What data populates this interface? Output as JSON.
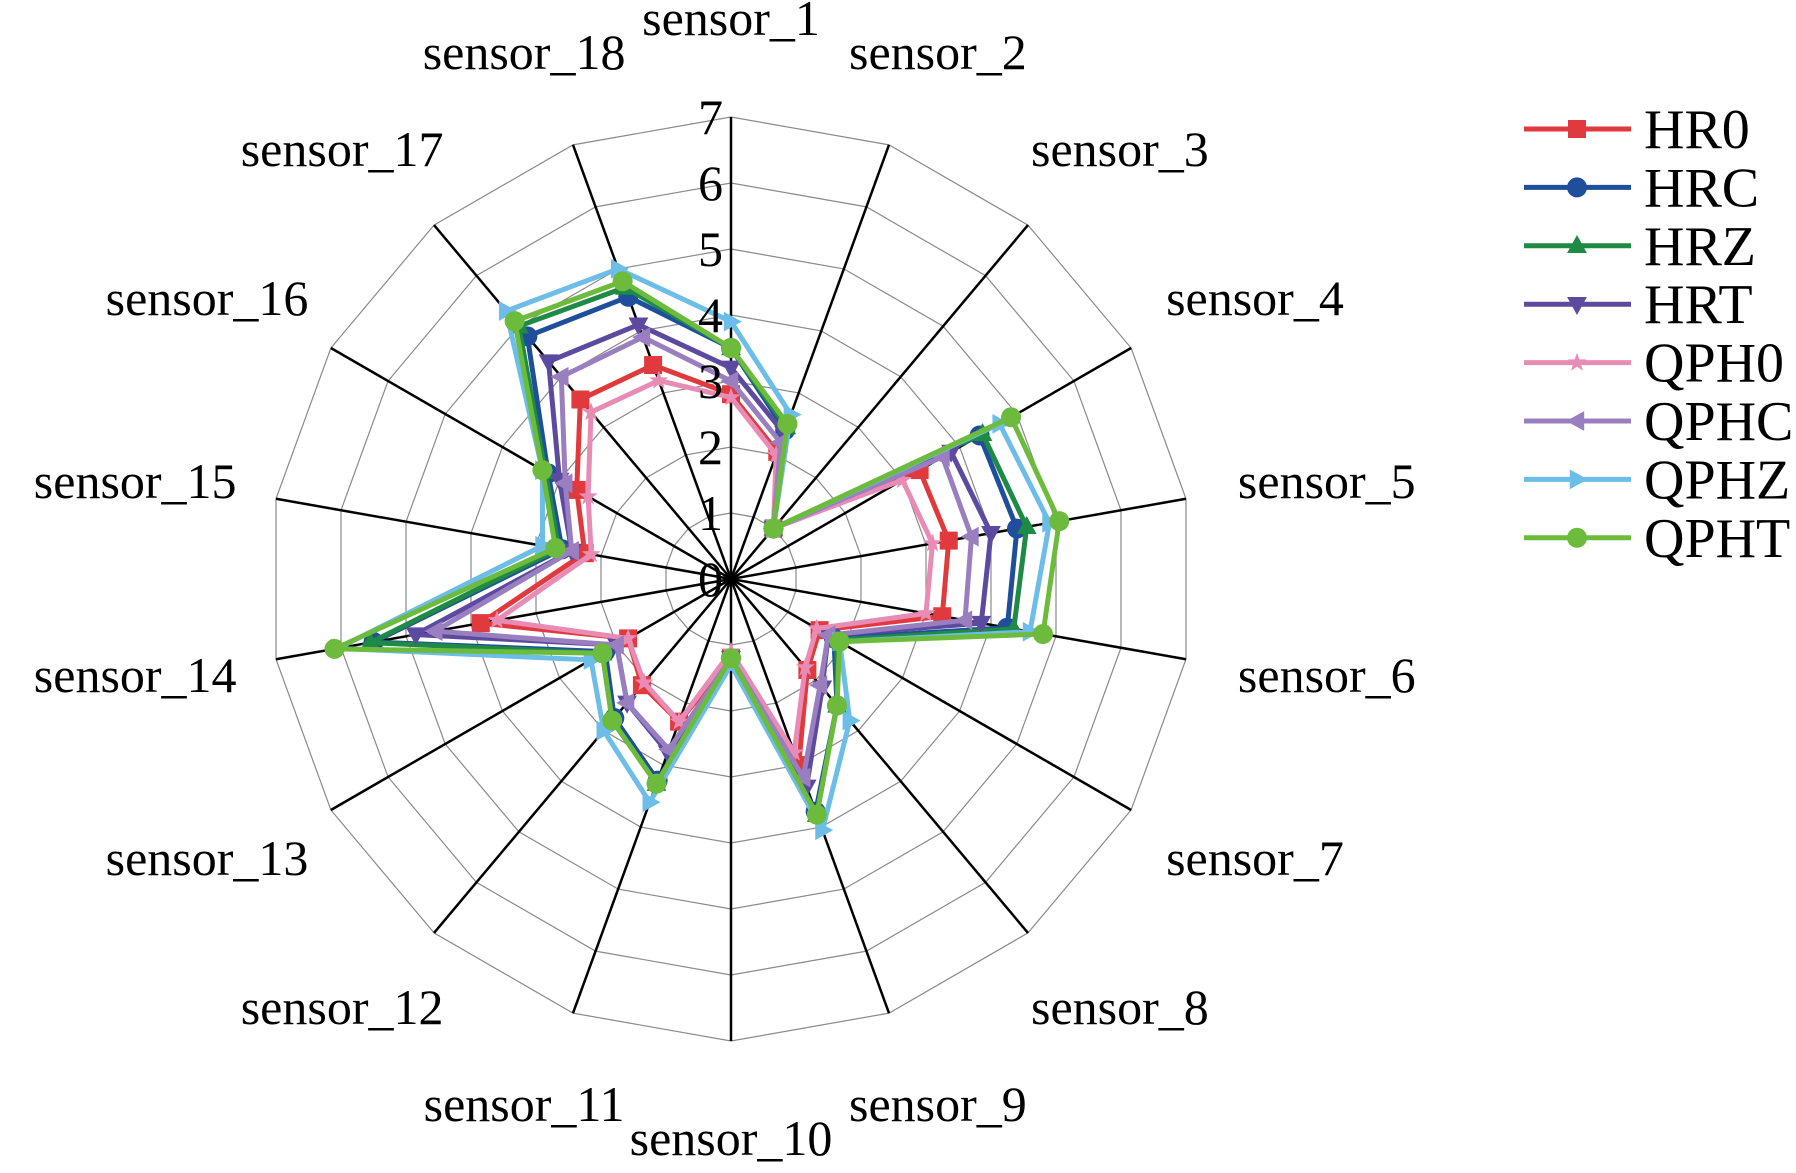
{
  "chart_data": {
    "type": "radar",
    "title": "",
    "categories": [
      "sensor_1",
      "sensor_2",
      "sensor_3",
      "sensor_4",
      "sensor_5",
      "sensor_6",
      "sensor_7",
      "sensor_8",
      "sensor_9",
      "sensor_10",
      "sensor_11",
      "sensor_12",
      "sensor_13",
      "sensor_14",
      "sensor_15",
      "sensor_16",
      "sensor_17",
      "sensor_18"
    ],
    "rlim": [
      0,
      7
    ],
    "ticks": [
      "0",
      "1",
      "2",
      "3",
      "4",
      "5",
      "6",
      "7"
    ],
    "grid": true,
    "legend_position": "top-right",
    "series": [
      {
        "name": "HR0",
        "color": "#e03a3e",
        "marker": "square",
        "values": [
          2.8,
          2.05,
          1.0,
          3.3,
          3.35,
          3.25,
          1.55,
          1.8,
          3.0,
          1.2,
          2.3,
          2.1,
          1.8,
          3.85,
          2.25,
          2.7,
          3.55,
          3.45
        ]
      },
      {
        "name": "HRC",
        "color": "#1f4e9c",
        "marker": "circle",
        "values": [
          3.5,
          2.4,
          1.0,
          4.35,
          4.4,
          4.25,
          1.8,
          2.5,
          3.75,
          1.2,
          3.25,
          2.75,
          2.2,
          5.5,
          2.6,
          3.2,
          4.8,
          4.55
        ]
      },
      {
        "name": "HRZ",
        "color": "#1e8a45",
        "marker": "triangle-up",
        "values": [
          3.5,
          2.45,
          1.0,
          4.4,
          4.55,
          4.35,
          1.85,
          2.5,
          3.8,
          1.2,
          3.3,
          2.8,
          2.25,
          5.55,
          2.65,
          3.25,
          5.0,
          4.7
        ]
      },
      {
        "name": "HRT",
        "color": "#5b4aa0",
        "marker": "triangle-down",
        "values": [
          3.2,
          2.35,
          1.0,
          3.85,
          4.0,
          3.85,
          1.7,
          2.15,
          3.35,
          1.2,
          2.8,
          2.45,
          2.0,
          4.85,
          2.45,
          3.0,
          4.3,
          4.1
        ]
      },
      {
        "name": "QPH0",
        "color": "#e98cb5",
        "marker": "star",
        "values": [
          2.75,
          2.0,
          1.0,
          3.0,
          3.1,
          3.0,
          1.5,
          1.75,
          2.8,
          1.1,
          2.3,
          2.05,
          1.8,
          3.6,
          2.15,
          2.5,
          3.3,
          3.2
        ]
      },
      {
        "name": "QPHC",
        "color": "#9a7fc0",
        "marker": "triangle-left",
        "values": [
          3.0,
          2.2,
          1.0,
          3.7,
          3.7,
          3.6,
          1.7,
          2.1,
          3.2,
          1.2,
          2.75,
          2.45,
          2.0,
          4.55,
          2.45,
          2.9,
          4.0,
          3.9
        ]
      },
      {
        "name": "QPHZ",
        "color": "#6cbde8",
        "marker": "triangle-right",
        "values": [
          3.9,
          2.65,
          1.0,
          4.7,
          4.9,
          4.6,
          1.9,
          2.8,
          4.05,
          1.3,
          3.6,
          3.0,
          2.45,
          6.05,
          2.9,
          3.3,
          5.3,
          5.0
        ]
      },
      {
        "name": "QPHT",
        "color": "#6cbb3c",
        "marker": "circle",
        "values": [
          3.5,
          2.5,
          1.0,
          4.9,
          5.05,
          4.8,
          1.9,
          2.5,
          3.8,
          1.2,
          3.3,
          2.8,
          2.25,
          6.1,
          2.7,
          3.3,
          5.1,
          4.8
        ]
      }
    ]
  }
}
